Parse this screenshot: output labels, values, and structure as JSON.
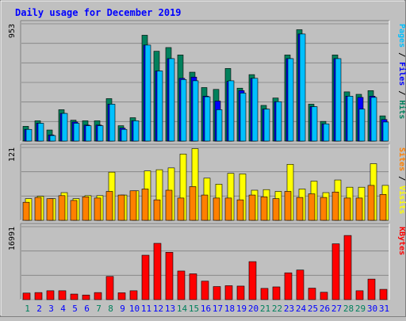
{
  "title": "Daily usage for December 2019",
  "colors": {
    "title": "#0000ff",
    "hits": "#00805c",
    "files": "#0000ff",
    "pages": "#00c0ff",
    "visits": "#ffff00",
    "sites": "#ff8000",
    "kbytes": "#ff0000",
    "weekend_label": "#00805c",
    "weekday_label": "#0000ff"
  },
  "chart_data": [
    {
      "type": "bar",
      "name": "hits-files-pages",
      "categories": [
        "1",
        "2",
        "3",
        "4",
        "5",
        "6",
        "7",
        "8",
        "9",
        "10",
        "11",
        "12",
        "13",
        "14",
        "15",
        "16",
        "17",
        "18",
        "19",
        "20",
        "21",
        "22",
        "23",
        "24",
        "25",
        "26",
        "27",
        "28",
        "29",
        "30",
        "31"
      ],
      "ymax_label": "953",
      "ylim": [
        0,
        953
      ],
      "legend": [
        "Pages",
        "Files",
        "Hits"
      ],
      "series": [
        {
          "name": "Hits",
          "values": [
            120,
            165,
            90,
            255,
            170,
            165,
            165,
            345,
            125,
            190,
            860,
            730,
            760,
            700,
            560,
            435,
            420,
            590,
            430,
            540,
            290,
            350,
            700,
            905,
            300,
            160,
            700,
            400,
            380,
            410,
            205
          ]
        },
        {
          "name": "Files",
          "values": [
            95,
            145,
            50,
            225,
            155,
            130,
            130,
            300,
            105,
            165,
            780,
            570,
            670,
            510,
            520,
            365,
            325,
            485,
            410,
            510,
            260,
            320,
            670,
            870,
            280,
            140,
            670,
            365,
            355,
            365,
            175
          ]
        },
        {
          "name": "Pages",
          "values": [
            95,
            145,
            45,
            225,
            145,
            125,
            125,
            300,
            95,
            165,
            780,
            570,
            670,
            500,
            490,
            360,
            255,
            490,
            390,
            510,
            260,
            320,
            670,
            870,
            280,
            140,
            670,
            365,
            260,
            355,
            155
          ]
        }
      ]
    },
    {
      "type": "bar",
      "name": "visits-sites",
      "categories": [
        "1",
        "2",
        "3",
        "4",
        "5",
        "6",
        "7",
        "8",
        "9",
        "10",
        "11",
        "12",
        "13",
        "14",
        "15",
        "16",
        "17",
        "18",
        "19",
        "20",
        "21",
        "22",
        "23",
        "24",
        "25",
        "26",
        "27",
        "28",
        "29",
        "30",
        "31"
      ],
      "ymax_label": "121",
      "ylim": [
        0,
        121
      ],
      "legend": [
        "Sites",
        "Visits"
      ],
      "series": [
        {
          "name": "Visits",
          "values": [
            36,
            40,
            36,
            46,
            36,
            41,
            41,
            80,
            42,
            49,
            82,
            84,
            87,
            110,
            119,
            70,
            60,
            78,
            77,
            50,
            51,
            48,
            93,
            52,
            65,
            46,
            67,
            55,
            55,
            94,
            58
          ]
        },
        {
          "name": "Sites",
          "values": [
            30,
            38,
            36,
            41,
            33,
            39,
            37,
            48,
            42,
            49,
            52,
            34,
            50,
            37,
            56,
            42,
            37,
            37,
            34,
            42,
            39,
            36,
            48,
            38,
            44,
            38,
            47,
            37,
            37,
            58,
            43
          ]
        }
      ]
    },
    {
      "type": "bar",
      "name": "kbytes",
      "categories": [
        "1",
        "2",
        "3",
        "4",
        "5",
        "6",
        "7",
        "8",
        "9",
        "10",
        "11",
        "12",
        "13",
        "14",
        "15",
        "16",
        "17",
        "18",
        "19",
        "20",
        "21",
        "22",
        "23",
        "24",
        "25",
        "26",
        "27",
        "28",
        "29",
        "30",
        "31"
      ],
      "ymax_label": "16991",
      "ylim": [
        0,
        16991
      ],
      "legend": [
        "KBytes"
      ],
      "series": [
        {
          "name": "KBytes",
          "values": [
            1520,
            1640,
            2060,
            2060,
            1290,
            1070,
            1640,
            5400,
            1590,
            2060,
            10340,
            13110,
            11020,
            6660,
            6010,
            4300,
            3040,
            3240,
            3150,
            8850,
            2610,
            2960,
            6240,
            6890,
            2670,
            1710,
            13000,
            14940,
            2060,
            4780,
            2390
          ]
        }
      ]
    }
  ],
  "weekend_days": [
    1,
    7,
    8,
    14,
    15,
    21,
    22,
    28,
    29
  ]
}
